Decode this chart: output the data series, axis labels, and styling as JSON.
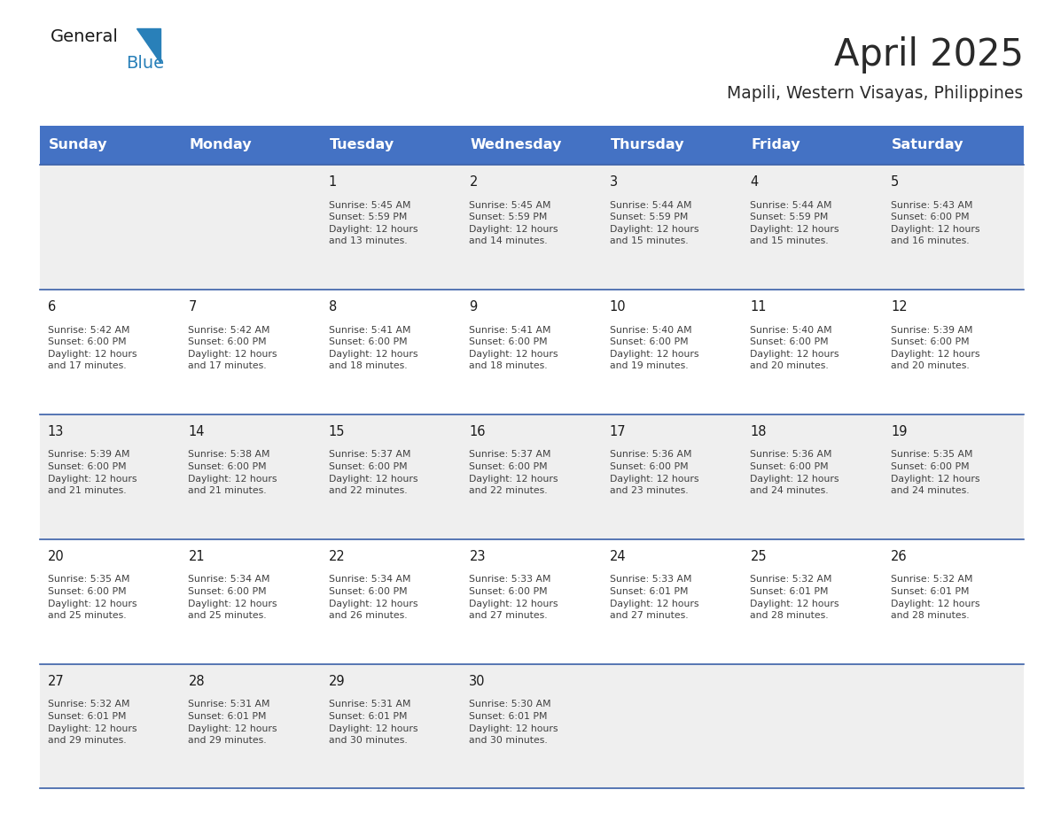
{
  "title": "April 2025",
  "subtitle": "Mapili, Western Visayas, Philippines",
  "header_bg_color": "#4472C4",
  "header_text_color": "#FFFFFF",
  "day_names": [
    "Sunday",
    "Monday",
    "Tuesday",
    "Wednesday",
    "Thursday",
    "Friday",
    "Saturday"
  ],
  "row_bg_even": "#EFEFEF",
  "row_bg_odd": "#FFFFFF",
  "cell_text_color": "#404040",
  "day_num_color": "#1a1a1a",
  "divider_color": "#3A5FA8",
  "logo_general_color": "#1a1a1a",
  "logo_blue_color": "#2980B9",
  "calendar": [
    [
      "",
      "",
      "1\nSunrise: 5:45 AM\nSunset: 5:59 PM\nDaylight: 12 hours\nand 13 minutes.",
      "2\nSunrise: 5:45 AM\nSunset: 5:59 PM\nDaylight: 12 hours\nand 14 minutes.",
      "3\nSunrise: 5:44 AM\nSunset: 5:59 PM\nDaylight: 12 hours\nand 15 minutes.",
      "4\nSunrise: 5:44 AM\nSunset: 5:59 PM\nDaylight: 12 hours\nand 15 minutes.",
      "5\nSunrise: 5:43 AM\nSunset: 6:00 PM\nDaylight: 12 hours\nand 16 minutes."
    ],
    [
      "6\nSunrise: 5:42 AM\nSunset: 6:00 PM\nDaylight: 12 hours\nand 17 minutes.",
      "7\nSunrise: 5:42 AM\nSunset: 6:00 PM\nDaylight: 12 hours\nand 17 minutes.",
      "8\nSunrise: 5:41 AM\nSunset: 6:00 PM\nDaylight: 12 hours\nand 18 minutes.",
      "9\nSunrise: 5:41 AM\nSunset: 6:00 PM\nDaylight: 12 hours\nand 18 minutes.",
      "10\nSunrise: 5:40 AM\nSunset: 6:00 PM\nDaylight: 12 hours\nand 19 minutes.",
      "11\nSunrise: 5:40 AM\nSunset: 6:00 PM\nDaylight: 12 hours\nand 20 minutes.",
      "12\nSunrise: 5:39 AM\nSunset: 6:00 PM\nDaylight: 12 hours\nand 20 minutes."
    ],
    [
      "13\nSunrise: 5:39 AM\nSunset: 6:00 PM\nDaylight: 12 hours\nand 21 minutes.",
      "14\nSunrise: 5:38 AM\nSunset: 6:00 PM\nDaylight: 12 hours\nand 21 minutes.",
      "15\nSunrise: 5:37 AM\nSunset: 6:00 PM\nDaylight: 12 hours\nand 22 minutes.",
      "16\nSunrise: 5:37 AM\nSunset: 6:00 PM\nDaylight: 12 hours\nand 22 minutes.",
      "17\nSunrise: 5:36 AM\nSunset: 6:00 PM\nDaylight: 12 hours\nand 23 minutes.",
      "18\nSunrise: 5:36 AM\nSunset: 6:00 PM\nDaylight: 12 hours\nand 24 minutes.",
      "19\nSunrise: 5:35 AM\nSunset: 6:00 PM\nDaylight: 12 hours\nand 24 minutes."
    ],
    [
      "20\nSunrise: 5:35 AM\nSunset: 6:00 PM\nDaylight: 12 hours\nand 25 minutes.",
      "21\nSunrise: 5:34 AM\nSunset: 6:00 PM\nDaylight: 12 hours\nand 25 minutes.",
      "22\nSunrise: 5:34 AM\nSunset: 6:00 PM\nDaylight: 12 hours\nand 26 minutes.",
      "23\nSunrise: 5:33 AM\nSunset: 6:00 PM\nDaylight: 12 hours\nand 27 minutes.",
      "24\nSunrise: 5:33 AM\nSunset: 6:01 PM\nDaylight: 12 hours\nand 27 minutes.",
      "25\nSunrise: 5:32 AM\nSunset: 6:01 PM\nDaylight: 12 hours\nand 28 minutes.",
      "26\nSunrise: 5:32 AM\nSunset: 6:01 PM\nDaylight: 12 hours\nand 28 minutes."
    ],
    [
      "27\nSunrise: 5:32 AM\nSunset: 6:01 PM\nDaylight: 12 hours\nand 29 minutes.",
      "28\nSunrise: 5:31 AM\nSunset: 6:01 PM\nDaylight: 12 hours\nand 29 minutes.",
      "29\nSunrise: 5:31 AM\nSunset: 6:01 PM\nDaylight: 12 hours\nand 30 minutes.",
      "30\nSunrise: 5:30 AM\nSunset: 6:01 PM\nDaylight: 12 hours\nand 30 minutes.",
      "",
      "",
      ""
    ]
  ],
  "fig_width": 11.88,
  "fig_height": 9.18
}
